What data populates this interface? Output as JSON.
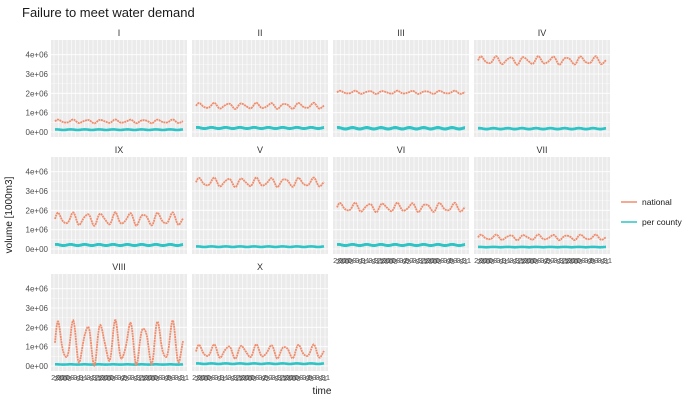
{
  "chart_data": {
    "type": "line",
    "title": "Failure to meet water demand",
    "xlabel": "time",
    "ylabel": "volume [1000m3]",
    "ylim": [
      0,
      4500000
    ],
    "yticks": [
      0,
      1000000,
      2000000,
      3000000,
      4000000
    ],
    "ytick_labels": [
      "0e+00",
      "1e+06",
      "2e+06",
      "3e+06",
      "4e+06"
    ],
    "grid": true,
    "legend_position": "right",
    "colors": {
      "national": "#f08c6c",
      "per county": "#2ec4c6"
    },
    "series_names": [
      "national",
      "per county"
    ],
    "x_tick_overprinted_text": "2000-01-012000-02-012000-03-01",
    "panels": [
      {
        "label": "I",
        "national": {
          "mean": 550000,
          "amplitude": 80000,
          "cycles": 9
        },
        "per_county": {
          "mean": 120000,
          "amplitude": 30000
        }
      },
      {
        "label": "II",
        "national": {
          "mean": 1350000,
          "amplitude": 130000,
          "cycles": 9
        },
        "per_county": {
          "mean": 200000,
          "amplitude": 60000
        }
      },
      {
        "label": "III",
        "national": {
          "mean": 2050000,
          "amplitude": 70000,
          "cycles": 9
        },
        "per_county": {
          "mean": 180000,
          "amplitude": 70000
        }
      },
      {
        "label": "IV",
        "national": {
          "mean": 3700000,
          "amplitude": 180000,
          "cycles": 9
        },
        "per_county": {
          "mean": 170000,
          "amplitude": 50000
        }
      },
      {
        "label": "IX",
        "national": {
          "mean": 1550000,
          "amplitude": 280000,
          "cycles": 9
        },
        "per_county": {
          "mean": 200000,
          "amplitude": 60000
        }
      },
      {
        "label": "V",
        "national": {
          "mean": 3450000,
          "amplitude": 200000,
          "cycles": 9
        },
        "per_county": {
          "mean": 120000,
          "amplitude": 30000
        }
      },
      {
        "label": "VI",
        "national": {
          "mean": 2150000,
          "amplitude": 200000,
          "cycles": 9
        },
        "per_county": {
          "mean": 200000,
          "amplitude": 60000
        }
      },
      {
        "label": "VII",
        "national": {
          "mean": 600000,
          "amplitude": 120000,
          "cycles": 9
        },
        "per_county": {
          "mean": 100000,
          "amplitude": 20000
        }
      },
      {
        "label": "VIII",
        "national": {
          "mean": 1200000,
          "amplitude": 950000,
          "cycles": 9
        },
        "per_county": {
          "mean": 80000,
          "amplitude": 15000
        }
      },
      {
        "label": "X",
        "national": {
          "mean": 750000,
          "amplitude": 300000,
          "cycles": 9
        },
        "per_county": {
          "mean": 120000,
          "amplitude": 30000
        }
      }
    ]
  }
}
